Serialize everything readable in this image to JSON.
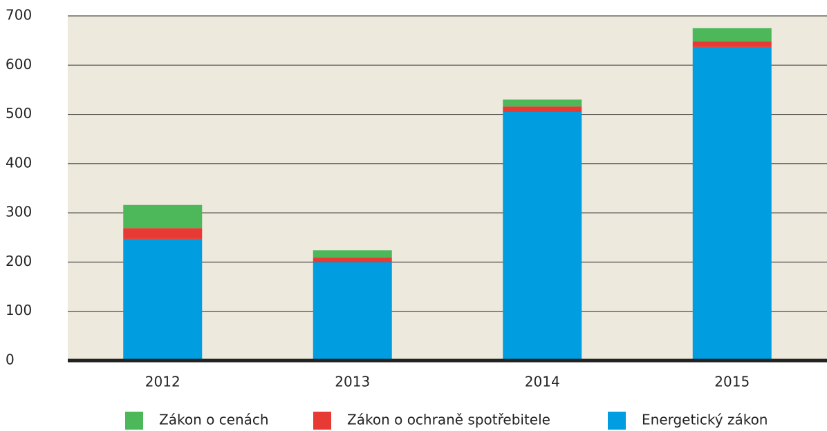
{
  "chart_data": {
    "type": "bar",
    "stacked": true,
    "categories": [
      "2012",
      "2013",
      "2014",
      "2015"
    ],
    "series": [
      {
        "name": "Energetický zákon",
        "color": "#009ee0",
        "values": [
          247,
          200,
          505,
          637
        ]
      },
      {
        "name": "Zákon o ochraně spotřebitele",
        "color": "#e83a34",
        "values": [
          22,
          9,
          11,
          11
        ]
      },
      {
        "name": "Zákon o cenách",
        "color": "#4cb85a",
        "values": [
          47,
          15,
          14,
          27
        ]
      }
    ],
    "ylim": [
      0,
      700
    ],
    "yticks": [
      0,
      100,
      200,
      300,
      400,
      500,
      600,
      700
    ],
    "grid": true
  }
}
